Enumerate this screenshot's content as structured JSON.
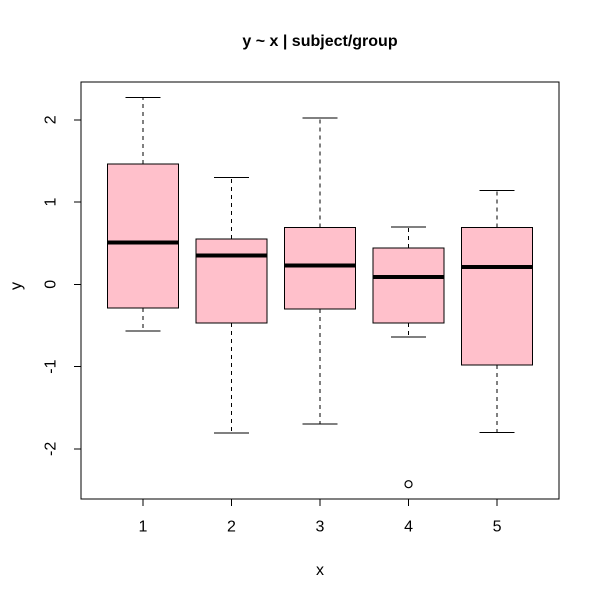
{
  "figure": {
    "background": "#FFFFFF",
    "frame_color": "#000000",
    "text_color": "#000000"
  },
  "chart_data": {
    "type": "boxplot",
    "title": "y ~ x | subject/group",
    "xlabel": "x",
    "ylabel": "y",
    "grid": false,
    "legend": null,
    "x_ticks": [
      1,
      2,
      3,
      4,
      5
    ],
    "x_tick_labels": [
      "1",
      "2",
      "3",
      "4",
      "5"
    ],
    "y_ticks": [
      -2,
      -1,
      0,
      1,
      2
    ],
    "y_tick_labels": [
      "-2",
      "-1",
      "0",
      "1",
      "2"
    ],
    "xlim": [
      0.3,
      5.7
    ],
    "ylim": [
      -2.61,
      2.46
    ],
    "box_fill": "#FFC0CB",
    "box_border": "#000000",
    "median_color": "#000000",
    "box_width": 0.8,
    "whisker_cap_width": 0.4,
    "whisker_style": "dashed",
    "boxes": [
      {
        "x": 1,
        "lower_whisker": -0.57,
        "q1": -0.29,
        "median": 0.51,
        "q3": 1.46,
        "upper_whisker": 2.27,
        "outliers": []
      },
      {
        "x": 2,
        "lower_whisker": -1.81,
        "q1": -0.47,
        "median": 0.35,
        "q3": 0.55,
        "upper_whisker": 1.3,
        "outliers": []
      },
      {
        "x": 3,
        "lower_whisker": -1.7,
        "q1": -0.3,
        "median": 0.23,
        "q3": 0.69,
        "upper_whisker": 2.02,
        "outliers": []
      },
      {
        "x": 4,
        "lower_whisker": -0.64,
        "q1": -0.47,
        "median": 0.09,
        "q3": 0.44,
        "upper_whisker": 0.7,
        "outliers": [
          -2.43
        ]
      },
      {
        "x": 5,
        "lower_whisker": -1.8,
        "q1": -0.98,
        "median": 0.21,
        "q3": 0.69,
        "upper_whisker": 1.14,
        "outliers": []
      }
    ]
  }
}
